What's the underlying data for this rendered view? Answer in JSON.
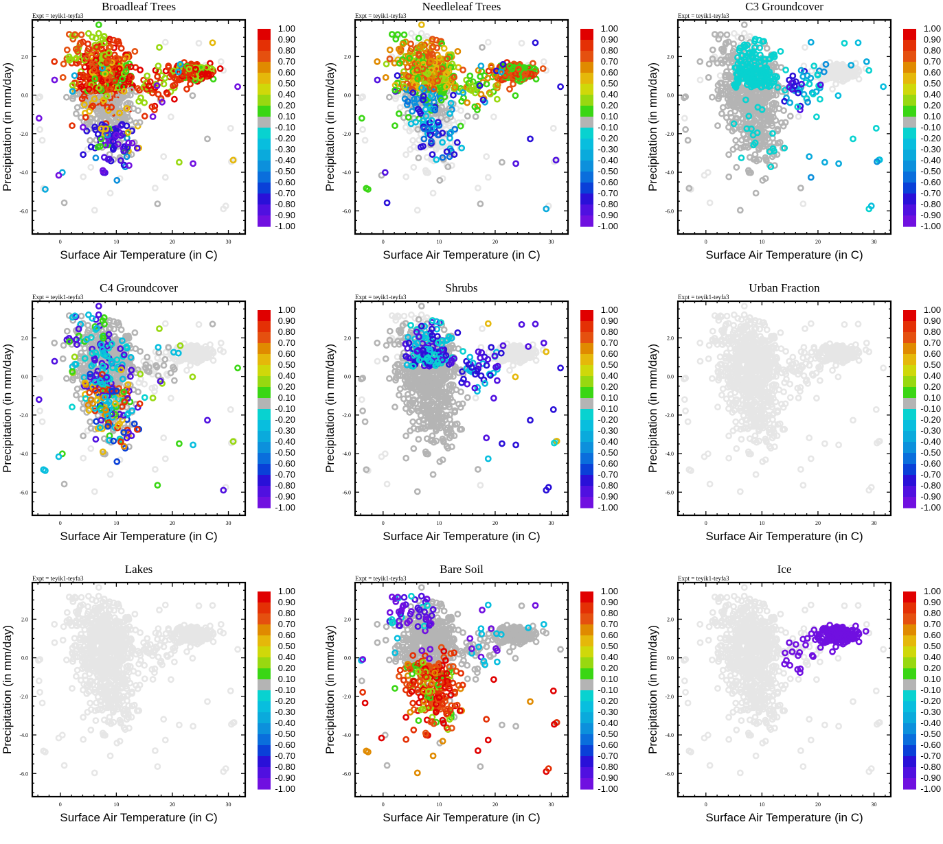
{
  "figure": {
    "expt_label": "Expt = teyik1-teyfa3",
    "xlabel": "Surface Air Temperature (in C)",
    "ylabel": "Precipitation (in mm/day)"
  },
  "chart_data": [
    {
      "type": "scatter",
      "title": "Broadleaf Trees",
      "scheme": "broadleaf"
    },
    {
      "type": "scatter",
      "title": "Needleleaf Trees",
      "scheme": "needleleaf"
    },
    {
      "type": "scatter",
      "title": "C3 Groundcover",
      "scheme": "c3"
    },
    {
      "type": "scatter",
      "title": "C4 Groundcover",
      "scheme": "c4"
    },
    {
      "type": "scatter",
      "title": "Shrubs",
      "scheme": "shrubs"
    },
    {
      "type": "scatter",
      "title": "Urban Fraction",
      "scheme": "urban"
    },
    {
      "type": "scatter",
      "title": "Lakes",
      "scheme": "lakes"
    },
    {
      "type": "scatter",
      "title": "Bare Soil",
      "scheme": "baresoil"
    },
    {
      "type": "scatter",
      "title": "Ice",
      "scheme": "ice"
    }
  ],
  "shared_axes": {
    "xlabel": "Surface Air Temperature (in C)",
    "ylabel": "Precipitation (in mm/day)",
    "xlim": [
      -5,
      33
    ],
    "ylim": [
      -7.2,
      3.9
    ],
    "xticks": [
      0,
      10,
      20,
      30
    ],
    "xtick_labels": [
      "0",
      "10",
      "20",
      "30"
    ],
    "yticks": [
      2.0,
      0.0,
      -2.0,
      -4.0,
      -6.0
    ],
    "ytick_labels": [
      "2.0",
      "0.0",
      "-2.0",
      "-4.0",
      "-6.0"
    ],
    "grid": false
  },
  "colorbar": {
    "labels": [
      "1.00",
      "0.90",
      "0.80",
      "0.70",
      "0.60",
      "0.50",
      "0.40",
      "0.20",
      "0.10",
      "-0.10",
      "-0.20",
      "-0.30",
      "-0.40",
      "-0.50",
      "-0.60",
      "-0.70",
      "-0.80",
      "-0.90",
      "-1.00"
    ],
    "colors": [
      "#e00000",
      "#e43005",
      "#e5500f",
      "#e08a00",
      "#e5b80a",
      "#cfd80a",
      "#98d810",
      "#3ad614",
      "#b4b4b4",
      "#08d2d0",
      "#08bede",
      "#0aaadc",
      "#0c90dc",
      "#0a6edc",
      "#0a40d8",
      "#2a10d8",
      "#5010e0",
      "#7010e0"
    ],
    "placement": "right"
  },
  "background_point_color": "#e6e6e6"
}
